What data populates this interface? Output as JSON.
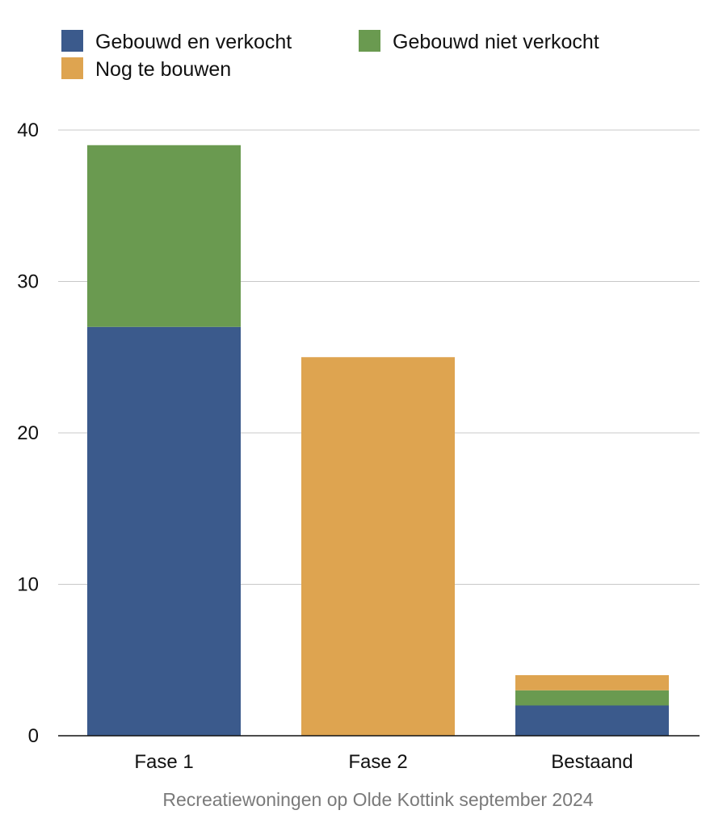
{
  "chart_data": {
    "type": "bar",
    "stacked": true,
    "categories": [
      "Fase 1",
      "Fase 2",
      "Bestaand"
    ],
    "series": [
      {
        "name": "Gebouwd en verkocht",
        "color": "#3b5a8c",
        "values": [
          27,
          0,
          2
        ]
      },
      {
        "name": "Gebouwd niet verkocht",
        "color": "#6a9a50",
        "values": [
          12,
          0,
          1
        ]
      },
      {
        "name": "Nog te bouwen",
        "color": "#dea450",
        "values": [
          0,
          25,
          1
        ]
      }
    ],
    "ylim": [
      0,
      40
    ],
    "yticks": [
      0,
      10,
      20,
      30,
      40
    ],
    "grid": true,
    "legend_position": "top-left",
    "caption": "Recreatiewoningen op Olde Kottink september 2024"
  }
}
